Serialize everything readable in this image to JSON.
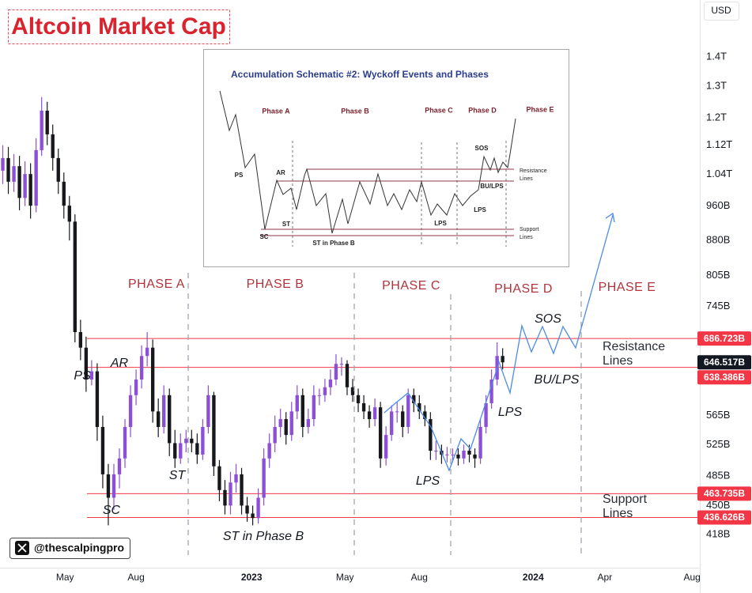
{
  "chart_data": {
    "type": "candlestick",
    "title": "Altcoin Market Cap",
    "currency": "USD",
    "open": [
      1050,
      1084,
      1021,
      1062,
      980,
      1041,
      961,
      1106,
      1222,
      1151,
      1084,
      1021,
      961,
      923,
      698,
      671,
      619,
      632,
      549,
      487,
      459,
      487,
      507,
      549,
      595,
      619,
      657,
      671,
      571,
      549,
      595,
      527,
      507,
      527,
      533,
      527,
      512,
      549,
      595,
      497,
      468,
      450,
      477,
      487,
      450,
      441,
      436,
      459,
      507,
      527,
      549,
      560,
      538,
      571,
      595,
      549,
      560,
      595,
      595,
      607,
      619,
      644,
      644,
      607,
      595,
      583,
      571,
      560,
      577,
      507,
      538,
      571,
      571,
      549,
      595,
      583,
      571,
      560,
      517,
      517,
      512,
      512,
      512,
      507,
      517,
      512,
      507,
      549,
      583,
      619,
      657
    ],
    "high": [
      1120,
      1115,
      1095,
      1090,
      1075,
      1070,
      1140,
      1265,
      1250,
      1180,
      1110,
      1045,
      985,
      940,
      720,
      690,
      650,
      645,
      565,
      500,
      500,
      520,
      560,
      610,
      635,
      675,
      698,
      685,
      590,
      610,
      605,
      545,
      540,
      545,
      545,
      540,
      560,
      610,
      600,
      505,
      480,
      490,
      500,
      495,
      460,
      450,
      470,
      520,
      540,
      565,
      575,
      570,
      585,
      610,
      605,
      575,
      610,
      605,
      620,
      635,
      660,
      655,
      650,
      620,
      605,
      595,
      580,
      590,
      585,
      550,
      580,
      585,
      580,
      605,
      605,
      595,
      580,
      570,
      530,
      525,
      522,
      520,
      520,
      525,
      525,
      520,
      560,
      595,
      635,
      680,
      670
    ],
    "low": [
      1015,
      990,
      995,
      950,
      960,
      930,
      945,
      1090,
      1120,
      1050,
      990,
      930,
      880,
      680,
      650,
      600,
      610,
      530,
      470,
      428,
      445,
      470,
      495,
      535,
      580,
      605,
      640,
      555,
      535,
      540,
      510,
      495,
      500,
      515,
      515,
      500,
      505,
      540,
      485,
      455,
      440,
      440,
      465,
      440,
      432,
      428,
      430,
      450,
      495,
      515,
      535,
      525,
      530,
      560,
      535,
      540,
      550,
      580,
      585,
      595,
      610,
      625,
      595,
      585,
      570,
      560,
      548,
      550,
      495,
      498,
      530,
      555,
      535,
      540,
      570,
      560,
      550,
      505,
      505,
      500,
      502,
      502,
      498,
      500,
      502,
      495,
      500,
      540,
      575,
      610,
      635
    ],
    "close": [
      1084,
      1021,
      1062,
      980,
      1041,
      961,
      1106,
      1222,
      1151,
      1084,
      1021,
      961,
      923,
      698,
      671,
      619,
      632,
      549,
      487,
      459,
      487,
      507,
      549,
      595,
      619,
      657,
      671,
      571,
      549,
      595,
      527,
      507,
      527,
      533,
      527,
      512,
      549,
      595,
      497,
      468,
      450,
      477,
      487,
      450,
      441,
      436,
      459,
      507,
      527,
      549,
      560,
      538,
      571,
      595,
      549,
      560,
      595,
      595,
      607,
      619,
      644,
      644,
      607,
      595,
      583,
      571,
      560,
      577,
      507,
      538,
      571,
      571,
      549,
      595,
      583,
      571,
      560,
      517,
      517,
      512,
      512,
      512,
      507,
      517,
      512,
      507,
      549,
      583,
      619,
      657,
      646.517
    ],
    "up_color": "#8b4fd8",
    "down_color": "#17181c",
    "xlim": [
      -0.5,
      125.5
    ],
    "xticks": [
      {
        "value": 11.2,
        "label": "May"
      },
      {
        "value": 24,
        "label": "Aug"
      },
      {
        "value": 44.8,
        "label": "2023"
      },
      {
        "value": 61.6,
        "label": "May"
      },
      {
        "value": 75,
        "label": "Aug"
      },
      {
        "value": 95.5,
        "label": "2024"
      },
      {
        "value": 108.4,
        "label": "Apr"
      },
      {
        "value": 124.1,
        "label": "Aug"
      }
    ],
    "ylim": [
      383,
      1617
    ],
    "log_scale": true,
    "yticks": [
      {
        "value": 1400,
        "label": "1.4T"
      },
      {
        "value": 1300,
        "label": "1.3T"
      },
      {
        "value": 1200,
        "label": "1.2T"
      },
      {
        "value": 1120,
        "label": "1.12T"
      },
      {
        "value": 1040,
        "label": "1.04T"
      },
      {
        "value": 960,
        "label": "960B"
      },
      {
        "value": 880,
        "label": "880B"
      },
      {
        "value": 805,
        "label": "805B"
      },
      {
        "value": 745,
        "label": "745B"
      },
      {
        "value": 565,
        "label": "565B"
      },
      {
        "value": 525,
        "label": "525B"
      },
      {
        "value": 485,
        "label": "485B"
      },
      {
        "value": 450,
        "label": "450B"
      },
      {
        "value": 418,
        "label": "418B"
      }
    ],
    "price_labels": [
      {
        "value": 686.723,
        "label": "686.723B",
        "color": "#f23645",
        "line": true
      },
      {
        "value": 646.517,
        "label": "646.517B",
        "color": "#131722",
        "line": false
      },
      {
        "value": 638.386,
        "label": "638.386B",
        "color": "#f23645",
        "line": true
      },
      {
        "value": 463.735,
        "label": "463.735B",
        "color": "#f23645",
        "line": true
      },
      {
        "value": 436.626,
        "label": "436.626B",
        "color": "#f23645",
        "line": true
      }
    ],
    "annotations": [
      "PHASE A",
      "PHASE B",
      "PHASE C",
      "PHASE D",
      "PHASE E",
      "PS",
      "SC",
      "AR",
      "ST",
      "ST in Phase B",
      "LPS",
      "LPS",
      "SOS",
      "BU/LPS"
    ],
    "resistance_label": [
      "Resistance",
      "Lines"
    ],
    "support_label": [
      "Support",
      "Lines"
    ]
  },
  "inset": {
    "title": "Accumulation Schematic #2: Wyckoff Events and Phases",
    "phases": [
      "Phase A",
      "Phase B",
      "Phase C",
      "Phase D",
      "Phase E"
    ],
    "events": [
      "PS",
      "AR",
      "SC",
      "ST",
      "ST in Phase B",
      "LPS",
      "SOS",
      "BU/LPS",
      "LPS"
    ],
    "resistance_label": [
      "Resistance",
      "Lines"
    ],
    "support_label": [
      "Support",
      "Lines"
    ]
  },
  "watermark": "@thescalpingpro"
}
